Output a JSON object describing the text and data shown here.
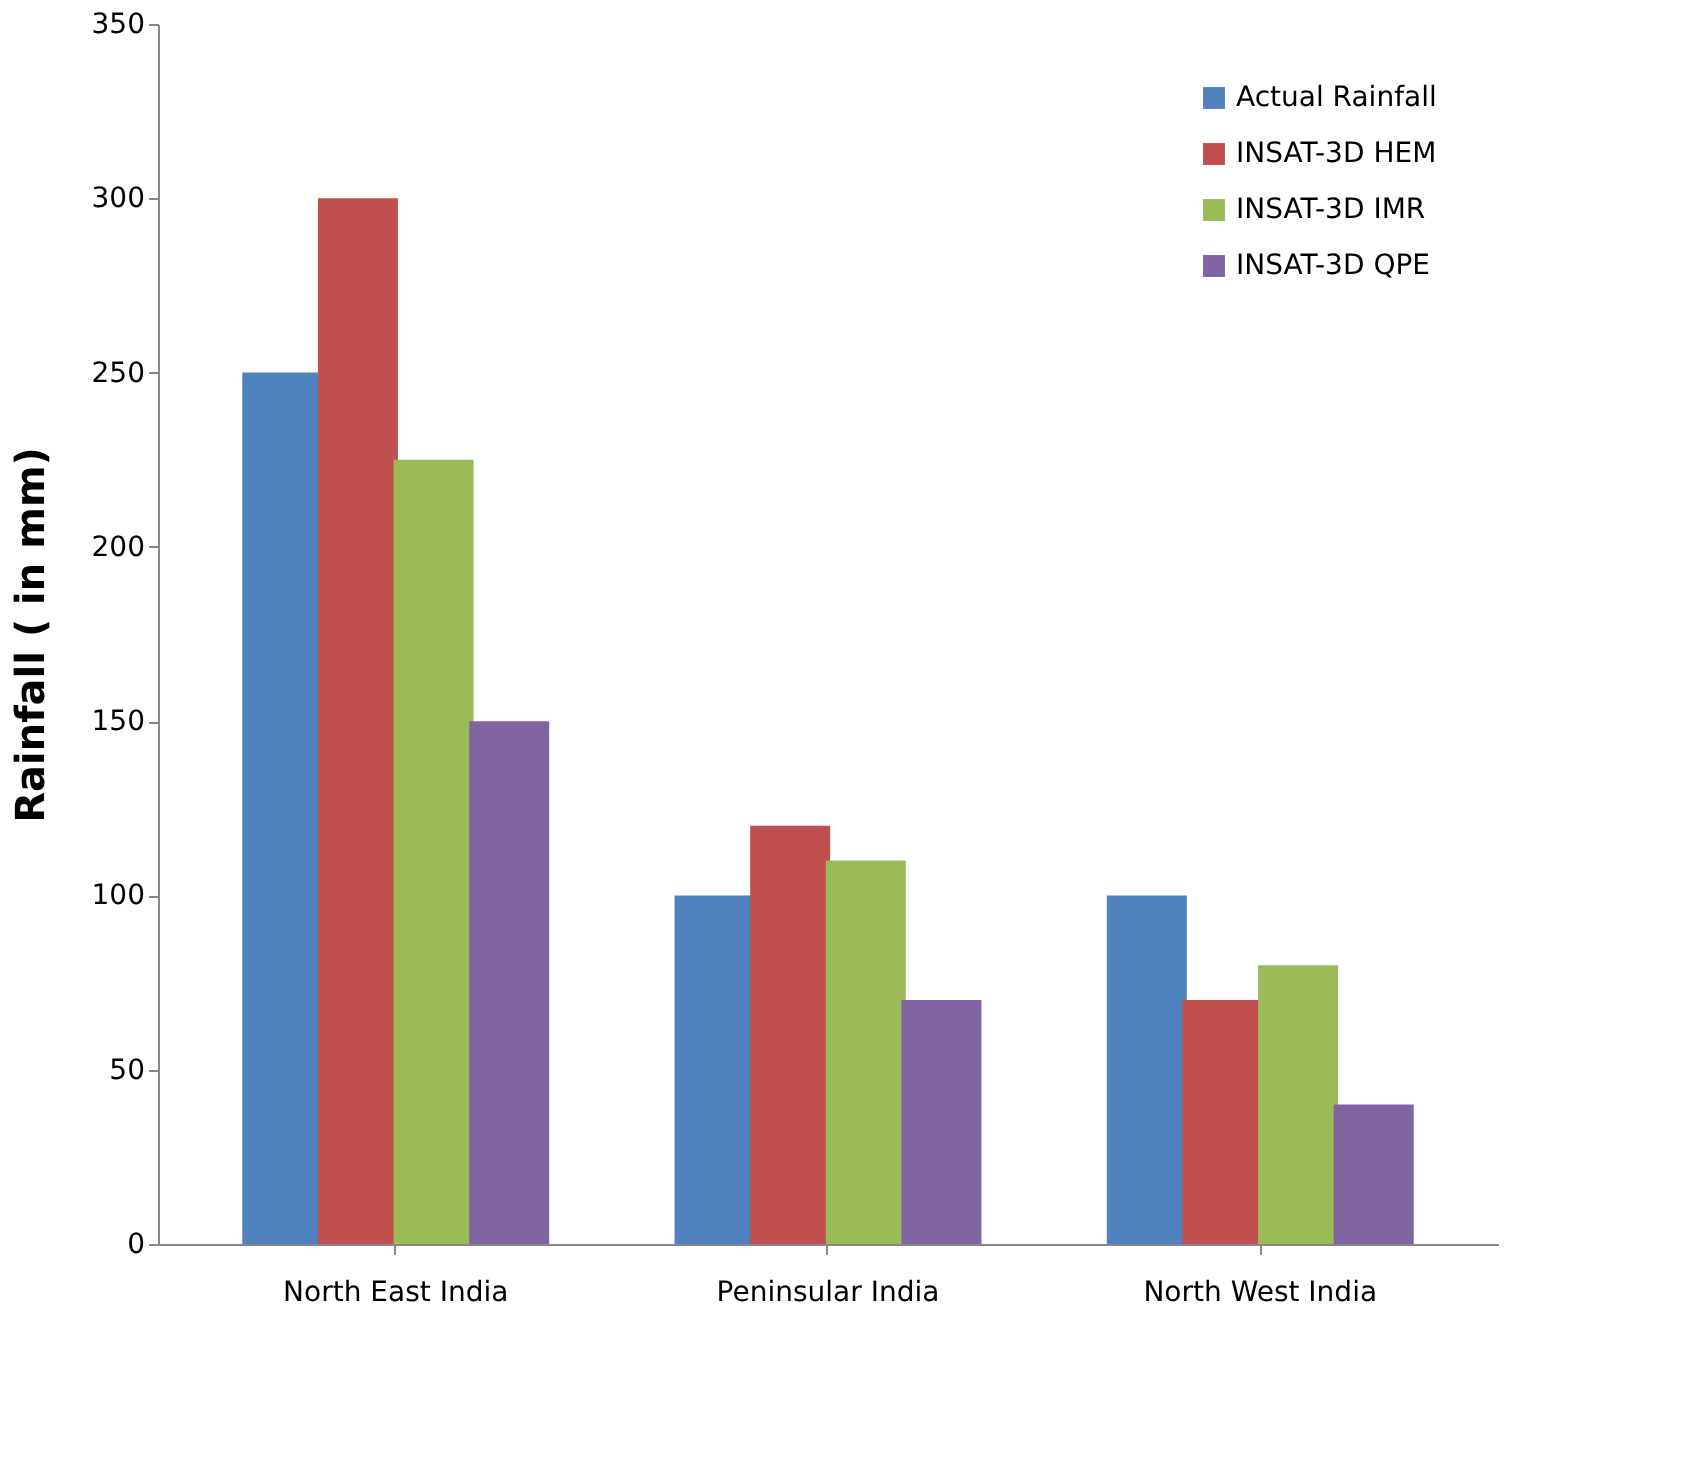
{
  "chart_data": {
    "type": "bar",
    "ylabel": "Rainfall ( in mm)",
    "categories": [
      "North East India",
      "Peninsular India",
      "North West India"
    ],
    "series": [
      {
        "name": "Actual Rainfall",
        "color": "#4f81bd",
        "values": [
          250,
          100,
          100
        ]
      },
      {
        "name": "INSAT-3D HEM",
        "color": "#c0504d",
        "values": [
          300,
          120,
          70
        ]
      },
      {
        "name": "INSAT-3D IMR",
        "color": "#9bbb59",
        "values": [
          225,
          110,
          80
        ]
      },
      {
        "name": "INSAT-3D QPE",
        "color": "#8064a2",
        "values": [
          150,
          70,
          40
        ]
      }
    ],
    "ylim": [
      0,
      350
    ],
    "yticks": [
      0,
      50,
      100,
      150,
      200,
      250,
      300,
      350
    ],
    "grid": false,
    "legend": "top right"
  }
}
